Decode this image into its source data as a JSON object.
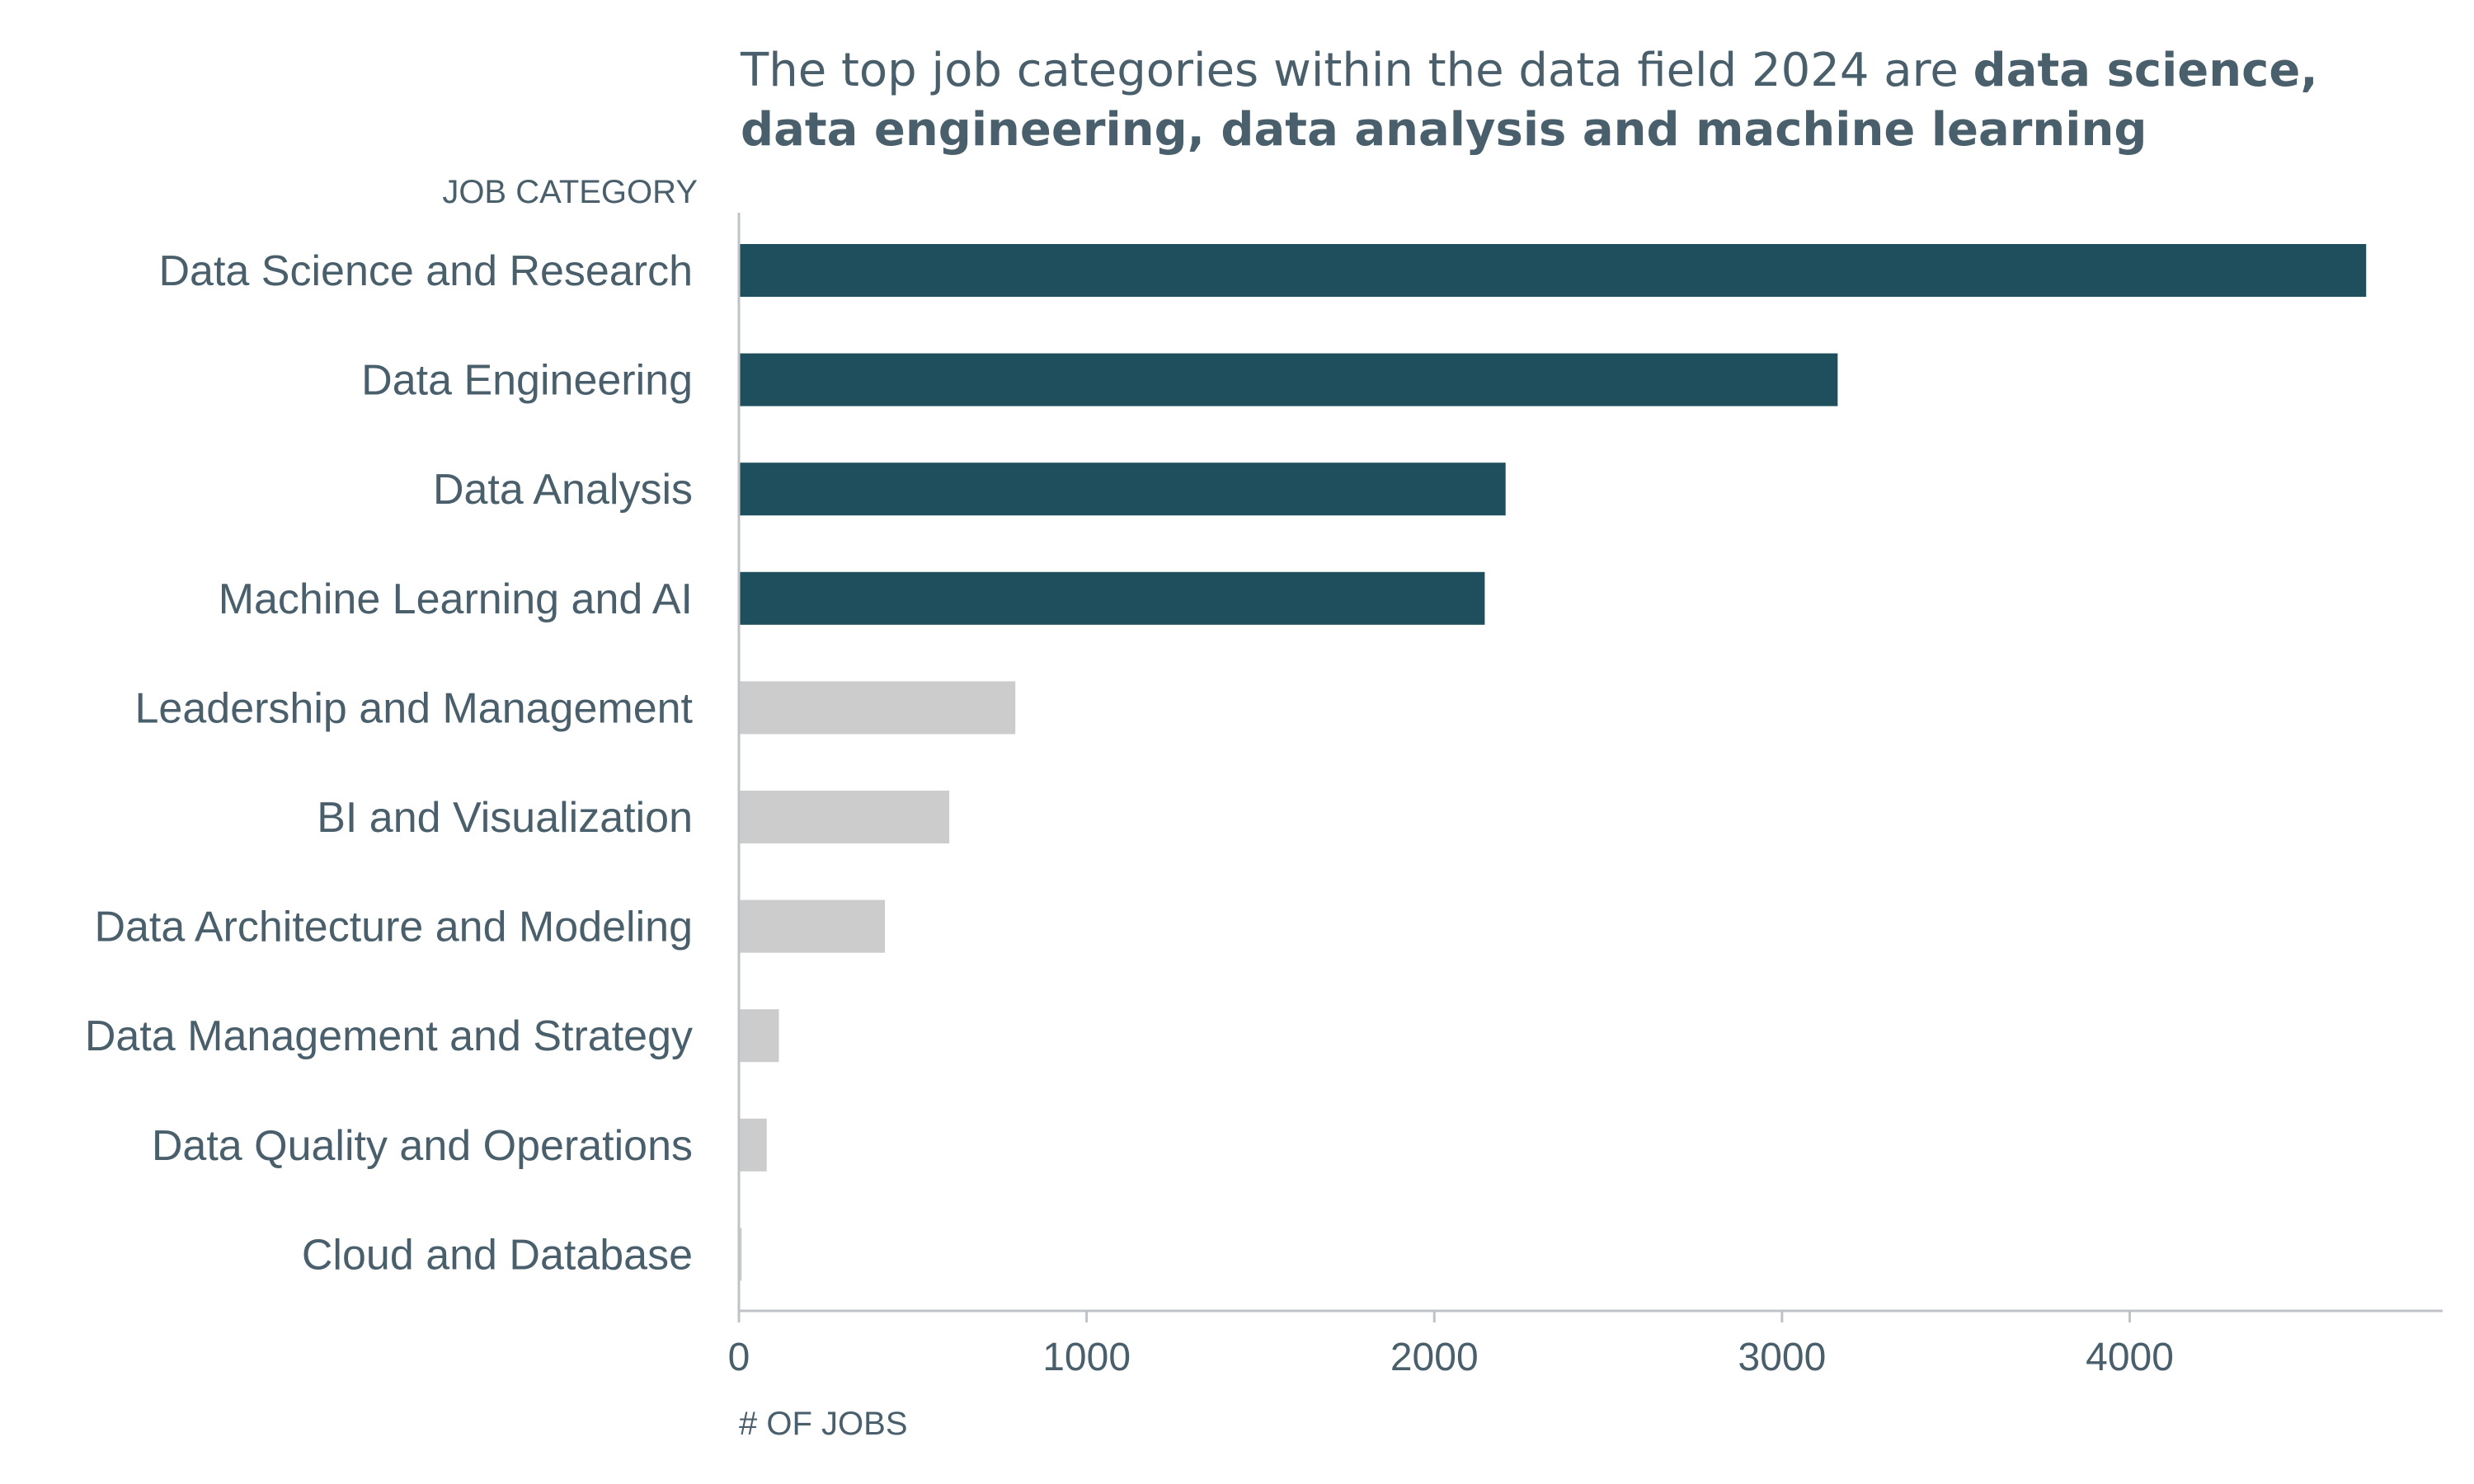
{
  "chart_data": {
    "type": "bar",
    "orientation": "horizontal",
    "title": {
      "prefix": "The top job categories within the data field 2024 are ",
      "emphasis": "data science, data engineering,  data analysis and machine learning"
    },
    "ylabel": "JOB CATEGORY",
    "xlabel": "# OF JOBS",
    "categories": [
      "Data Science and Research",
      "Data Engineering",
      "Data Analysis",
      "Machine Learning and AI",
      "Leadership and Management",
      "BI and Visualization",
      "Data Architecture and Modeling",
      "Data Management and Strategy",
      "Data Quality and Operations",
      "Cloud and Database"
    ],
    "values": [
      4680,
      3160,
      2205,
      2145,
      795,
      605,
      420,
      115,
      80,
      8
    ],
    "highlighted": [
      true,
      true,
      true,
      true,
      false,
      false,
      false,
      false,
      false,
      false
    ],
    "xlim": [
      0,
      4900
    ],
    "xticks": [
      0,
      1000,
      2000,
      3000,
      4000
    ],
    "grid": false,
    "legend": "none",
    "colors": {
      "highlight": "#1f4e5c",
      "muted": "#cccccc",
      "text": "#4a5f6c",
      "axis": "#bfc3c7"
    }
  }
}
